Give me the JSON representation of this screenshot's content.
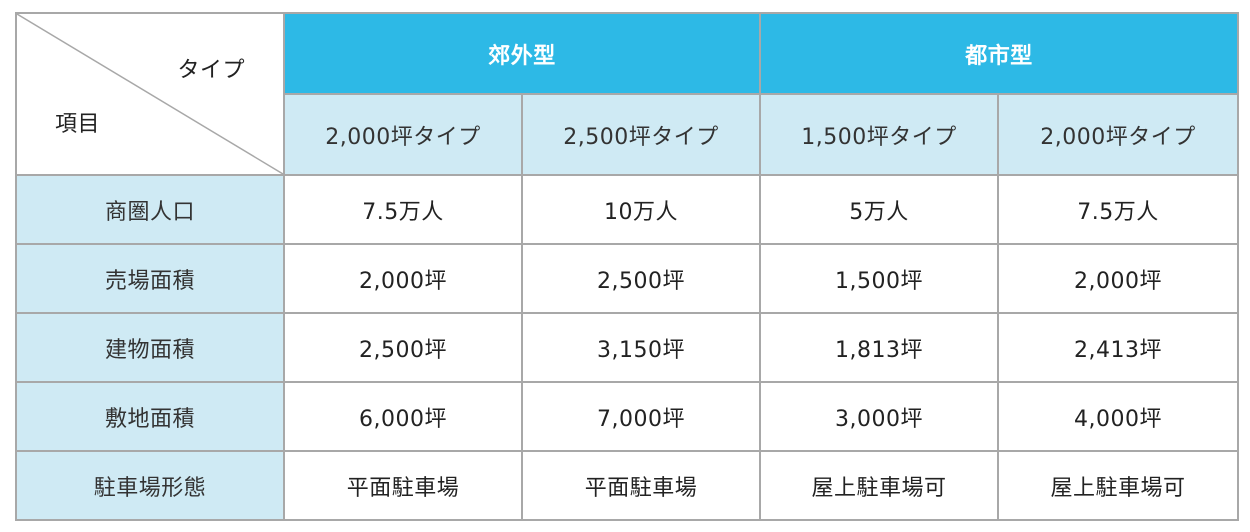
{
  "corner": {
    "type_label": "タイプ",
    "item_label": "項目"
  },
  "groups": [
    {
      "label": "郊外型"
    },
    {
      "label": "都市型"
    }
  ],
  "columns": [
    {
      "label": "2,000坪タイプ"
    },
    {
      "label": "2,500坪タイプ"
    },
    {
      "label": "1,500坪タイプ"
    },
    {
      "label": "2,000坪タイプ"
    }
  ],
  "rows": [
    {
      "label": "商圏人口",
      "cells": [
        "7.5万人",
        "10万人",
        "5万人",
        "7.5万人"
      ]
    },
    {
      "label": "売場面積",
      "cells": [
        "2,000坪",
        "2,500坪",
        "1,500坪",
        "2,000坪"
      ]
    },
    {
      "label": "建物面積",
      "cells": [
        "2,500坪",
        "3,150坪",
        "1,813坪",
        "2,413坪"
      ]
    },
    {
      "label": "敷地面積",
      "cells": [
        "6,000坪",
        "7,000坪",
        "3,000坪",
        "4,000坪"
      ]
    },
    {
      "label": "駐車場形態",
      "cells": [
        "平面駐車場",
        "平面駐車場",
        "屋上駐車場可",
        "屋上駐車場可"
      ]
    }
  ],
  "colors": {
    "group_header_bg": "#2db9e6",
    "sub_header_bg": "#cfeaf4",
    "border": "#a8a8a8"
  }
}
